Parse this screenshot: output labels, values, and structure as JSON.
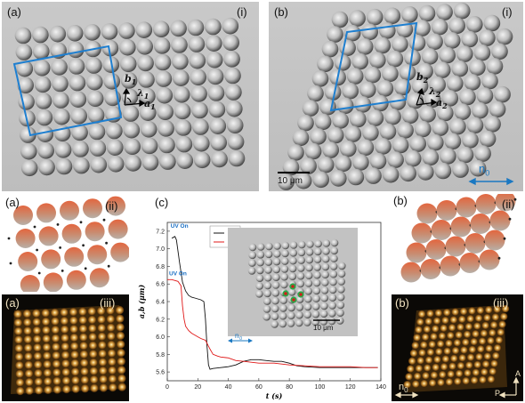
{
  "panels": {
    "a_i": {
      "letter": "(a)",
      "roman": "(i)"
    },
    "b_i": {
      "letter": "(b)",
      "roman": "(i)"
    },
    "a_ii": {
      "letter": "(a)",
      "roman": "(ii)"
    },
    "b_ii": {
      "letter": "(b)",
      "roman": "(ii)"
    },
    "a_iii": {
      "letter": "(a)",
      "roman": "(iii)"
    },
    "b_iii": {
      "letter": "(b)",
      "roman": "(iii)"
    },
    "c": {
      "letter": "(c)"
    }
  },
  "vectors": {
    "a": {
      "b": "b",
      "b_sub": "1",
      "lambda": "λ",
      "lambda_sub": "1",
      "a": "a",
      "a_sub": "1"
    },
    "b": {
      "b": "b",
      "b_sub": "2",
      "lambda": "λ",
      "lambda_sub": "2",
      "a": "a",
      "a_sub": "2"
    }
  },
  "scalebars": {
    "b_i": "10 μm",
    "inset": "10 μm",
    "director": "n",
    "director_sub": "0"
  },
  "polarizer": {
    "analyzer": "A",
    "polarizer": "P"
  },
  "colors": {
    "blue_frame": "#1e7fd0",
    "line_a": "#111111",
    "line_b": "#e01818",
    "uv_label": "#1a6fc4",
    "particle_top": "#e3663f",
    "particle_bottom": "#b8b0a8"
  },
  "chart_data": {
    "type": "line",
    "xlabel": "t (s)",
    "ylabel": "a,b (μm)",
    "xlim": [
      0,
      140
    ],
    "ylim": [
      5.5,
      7.3
    ],
    "xticks": [
      0,
      20,
      40,
      60,
      80,
      100,
      120,
      140
    ],
    "yticks": [
      5.6,
      5.8,
      6.0,
      6.2,
      6.4,
      6.6,
      6.8,
      7.0,
      7.2
    ],
    "annotations": [
      {
        "text": "UV On",
        "x": 1,
        "y": 7.23
      },
      {
        "text": "UV On",
        "x": 0,
        "y": 6.69
      }
    ],
    "legend": [
      "a",
      "b"
    ],
    "legend_position": "top-right",
    "series": [
      {
        "name": "a",
        "x": [
          3,
          5,
          6,
          8,
          10,
          12,
          14,
          16,
          18,
          20,
          22,
          24,
          25,
          26,
          27,
          28,
          30,
          35,
          40,
          45,
          50,
          55,
          60,
          65,
          70,
          75,
          80,
          85,
          90,
          100,
          110,
          120,
          130,
          138
        ],
        "y": [
          7.12,
          7.14,
          7.1,
          6.85,
          6.62,
          6.52,
          6.47,
          6.45,
          6.44,
          6.43,
          6.42,
          6.4,
          6.2,
          5.9,
          5.68,
          5.63,
          5.64,
          5.65,
          5.66,
          5.68,
          5.72,
          5.74,
          5.74,
          5.73,
          5.72,
          5.72,
          5.7,
          5.67,
          5.66,
          5.65,
          5.65,
          5.65,
          5.65,
          5.65
        ]
      },
      {
        "name": "b",
        "x": [
          0,
          3,
          5,
          7,
          9,
          10,
          11,
          12,
          14,
          16,
          18,
          20,
          22,
          25,
          28,
          30,
          33,
          35,
          40,
          45,
          50,
          55,
          60,
          70,
          80,
          90,
          100,
          110,
          120,
          130,
          138
        ],
        "y": [
          6.65,
          6.65,
          6.64,
          6.63,
          6.58,
          6.35,
          6.2,
          6.12,
          6.07,
          6.04,
          6.02,
          6.0,
          5.98,
          5.96,
          5.86,
          5.8,
          5.78,
          5.77,
          5.76,
          5.73,
          5.72,
          5.71,
          5.7,
          5.7,
          5.68,
          5.67,
          5.66,
          5.66,
          5.66,
          5.65,
          5.65
        ]
      }
    ]
  }
}
